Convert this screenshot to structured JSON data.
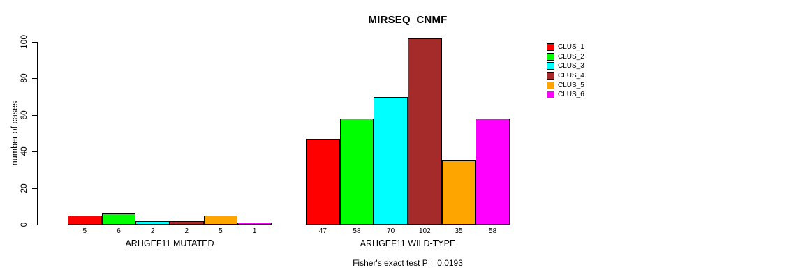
{
  "chart_data": {
    "type": "bar",
    "title": "MIRSEQ_CNMF",
    "ylabel": "number of cases",
    "subtitle": "Fisher's exact test P = 0.0193",
    "ylim": [
      0,
      100
    ],
    "yticks": [
      0,
      20,
      40,
      60,
      80,
      100
    ],
    "grid": false,
    "legend_position": "right",
    "groups": [
      "ARHGEF11 MUTATED",
      "ARHGEF11 WILD-TYPE"
    ],
    "series": [
      {
        "name": "CLUS_1",
        "color": "#FF0000",
        "values": [
          5,
          47
        ]
      },
      {
        "name": "CLUS_2",
        "color": "#00FF00",
        "values": [
          6,
          58
        ]
      },
      {
        "name": "CLUS_3",
        "color": "#00FFFF",
        "values": [
          2,
          70
        ]
      },
      {
        "name": "CLUS_4",
        "color": "#A52A2A",
        "values": [
          2,
          102
        ]
      },
      {
        "name": "CLUS_5",
        "color": "#FFA500",
        "values": [
          5,
          35
        ]
      },
      {
        "name": "CLUS_6",
        "color": "#FF00FF",
        "values": [
          1,
          58
        ]
      }
    ]
  }
}
